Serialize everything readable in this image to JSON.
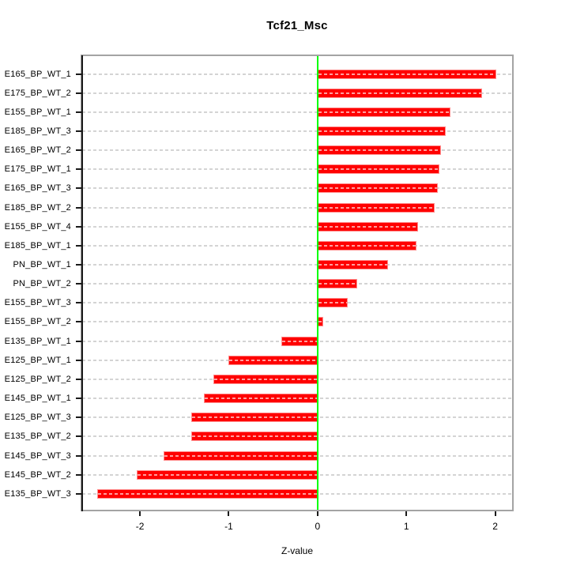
{
  "title": "Tcf21_Msc",
  "chart_data": {
    "type": "bar",
    "orientation": "horizontal",
    "title": "Tcf21_Msc",
    "xlabel": "Z-value",
    "categories": [
      "E165_BP_WT_1",
      "E175_BP_WT_2",
      "E155_BP_WT_1",
      "E185_BP_WT_3",
      "E165_BP_WT_2",
      "E175_BP_WT_1",
      "E165_BP_WT_3",
      "E185_BP_WT_2",
      "E155_BP_WT_4",
      "E185_BP_WT_1",
      "PN_BP_WT_1",
      "PN_BP_WT_2",
      "E155_BP_WT_3",
      "E155_BP_WT_2",
      "E135_BP_WT_1",
      "E125_BP_WT_1",
      "E125_BP_WT_2",
      "E145_BP_WT_1",
      "E125_BP_WT_3",
      "E135_BP_WT_2",
      "E145_BP_WT_3",
      "E145_BP_WT_2",
      "E135_BP_WT_3"
    ],
    "values": [
      2.01,
      1.85,
      1.5,
      1.44,
      1.39,
      1.37,
      1.35,
      1.32,
      1.13,
      1.11,
      0.79,
      0.45,
      0.34,
      0.06,
      -0.41,
      -1.0,
      -1.17,
      -1.28,
      -1.42,
      -1.42,
      -1.73,
      -2.04,
      -2.48
    ],
    "xticks": [
      "-2",
      "-1",
      "0",
      "1",
      "2"
    ],
    "xtick_values": [
      -2,
      -1,
      0,
      1,
      2
    ],
    "xlim": [
      -2.65,
      2.19
    ],
    "grid": true,
    "legend": null,
    "bar_color": "#ff0000",
    "zero_line_color": "#00ff00",
    "grid_color": "#d4d4d4",
    "box_color": "#a4a4a4",
    "axis_color": "#1a1a1a"
  }
}
